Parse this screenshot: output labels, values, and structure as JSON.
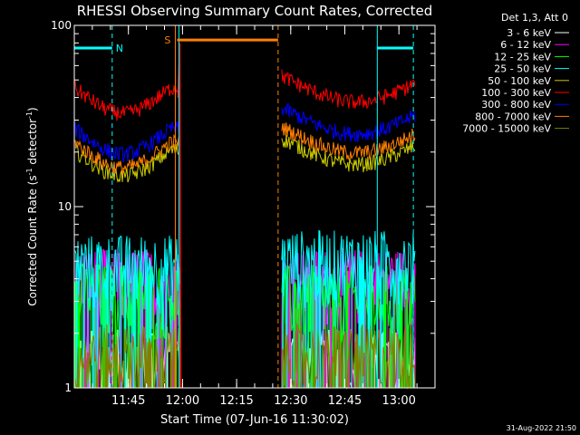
{
  "chart_data": {
    "type": "line",
    "title": "RHESSI Observing Summary Count Rates, Corrected",
    "xlabel": "Start Time (07-Jun-16 11:30:02)",
    "ylabel_parts": [
      "Corrected Count Rate (s",
      "-1",
      " detector",
      "-1",
      ")"
    ],
    "yscale": "log",
    "ylim": [
      1,
      100
    ],
    "y_ticks": [
      {
        "v": 1,
        "label": "1"
      },
      {
        "v": 10,
        "label": "10"
      },
      {
        "v": 100,
        "label": "100"
      }
    ],
    "xlim_minutes": [
      0,
      100
    ],
    "x_ticks": [
      {
        "m": 15,
        "label": "11:45"
      },
      {
        "m": 30,
        "label": "12:00"
      },
      {
        "m": 45,
        "label": "12:15"
      },
      {
        "m": 60,
        "label": "12:30"
      },
      {
        "m": 75,
        "label": "12:45"
      },
      {
        "m": 90,
        "label": "13:00"
      }
    ],
    "legend_header": "Det 1,3, Att 0",
    "legend_position": "top-right",
    "timestamp": "31-Aug-2022 21:50",
    "flags": [
      {
        "label": "N",
        "color": "#00ffff",
        "segments": [
          [
            0,
            10.5
          ],
          [
            84,
            94
          ]
        ],
        "level": 75
      },
      {
        "label": "S",
        "color": "#ff8000",
        "segments": [
          [
            28.5,
            56.5
          ]
        ],
        "level": 83
      }
    ],
    "vlines": [
      {
        "m": 10.5,
        "color": "#00ffff",
        "style": "dash"
      },
      {
        "m": 28,
        "color": "#ff8000",
        "style": "solid"
      },
      {
        "m": 29,
        "color": "#00ffff",
        "style": "solid"
      },
      {
        "m": 56.5,
        "color": "#ff8000",
        "style": "dash"
      },
      {
        "m": 84,
        "color": "#00ffff",
        "style": "solid"
      },
      {
        "m": 94,
        "color": "#00ffff",
        "style": "dash"
      }
    ],
    "gap": [
      29.5,
      57.5
    ],
    "series": [
      {
        "name": "3 - 6 keV",
        "color": "#ffffff",
        "pre": 1.5,
        "post": 1.5
      },
      {
        "name": "6 - 12 keV",
        "color": "#ff00ff",
        "pre": 4.2,
        "post": 4.2
      },
      {
        "name": "12 - 25 keV",
        "color": "#00ff00",
        "pre": 3.5,
        "post": 3.4
      },
      {
        "name": "25 - 50 keV",
        "color": "#00ffff",
        "pre": 5.0,
        "post": 5.3
      },
      {
        "name": "50 - 100 keV",
        "color": "#cccc00",
        "pre": 19,
        "post": 19
      },
      {
        "name": "100 - 300 keV",
        "color": "#ff0000",
        "pre": 42,
        "post": 42
      },
      {
        "name": "300 - 800 keV",
        "color": "#0000ff",
        "pre": 25,
        "post": 28
      },
      {
        "name": "800 - 7000 keV",
        "color": "#ff8000",
        "pre": 21,
        "post": 22
      },
      {
        "name": "7000 - 15000 keV",
        "color": "#808000",
        "pre": 1.6,
        "post": 1.6
      }
    ]
  }
}
